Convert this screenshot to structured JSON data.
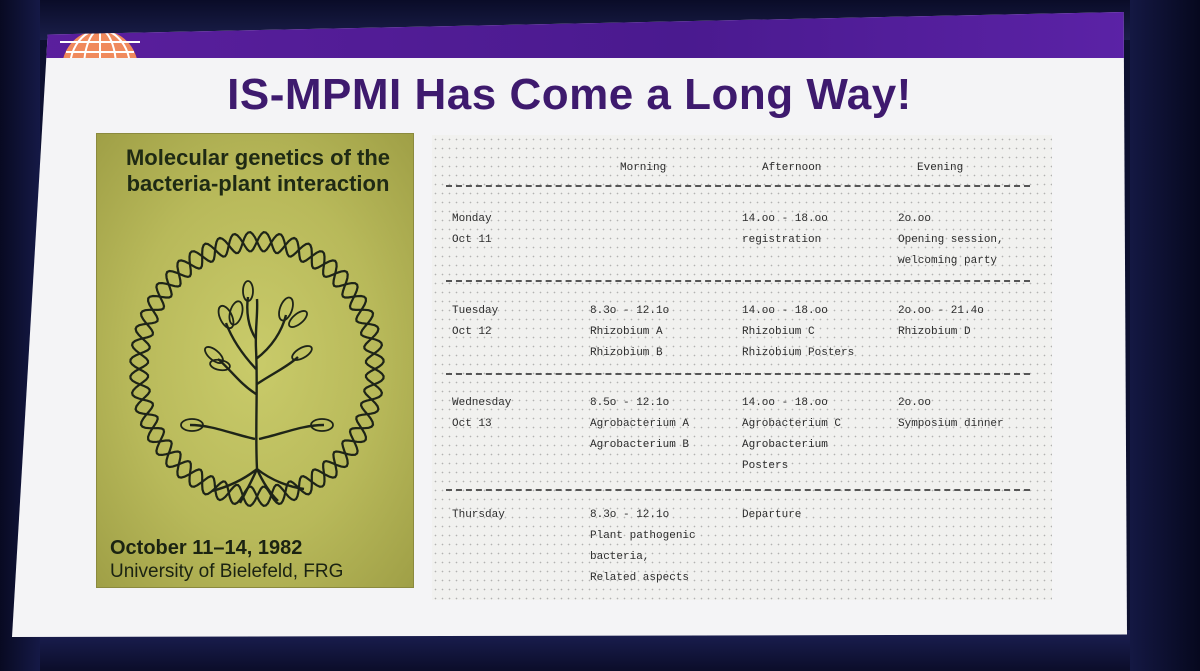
{
  "slide": {
    "title": "IS-MPMI Has Come a Long Way!"
  },
  "poster": {
    "title_line1": "Molecular genetics of the",
    "title_line2": "bacteria-plant interaction",
    "date": "October 11–14, 1982",
    "place": "University of Bielefeld, FRG"
  },
  "schedule": {
    "headers": {
      "morning": "Morning",
      "afternoon": "Afternoon",
      "evening": "Evening"
    },
    "days": [
      {
        "day": [
          "Monday",
          "Oct 11"
        ],
        "morning": [],
        "afternoon": [
          "14.oo - 18.oo",
          "registration"
        ],
        "evening": [
          "2o.oo",
          "Opening session,",
          "welcoming party"
        ]
      },
      {
        "day": [
          "Tuesday",
          "Oct 12"
        ],
        "morning": [
          "8.3o - 12.1o",
          "Rhizobium A",
          "Rhizobium B"
        ],
        "afternoon": [
          "14.oo - 18.oo",
          "Rhizobium C",
          "Rhizobium Posters"
        ],
        "evening": [
          "2o.oo - 21.4o",
          "Rhizobium D"
        ]
      },
      {
        "day": [
          "Wednesday",
          "Oct 13"
        ],
        "morning": [
          "8.5o - 12.1o",
          "Agrobacterium A",
          "Agrobacterium B"
        ],
        "afternoon": [
          "14.oo - 18.oo",
          "Agrobacterium C",
          "Agrobacterium",
          "Posters"
        ],
        "evening": [
          "2o.oo",
          "Symposium dinner"
        ]
      },
      {
        "day": [
          "Thursday"
        ],
        "morning": [
          "8.3o - 12.1o",
          "Plant pathogenic",
          "bacteria,",
          "Related aspects"
        ],
        "afternoon": [
          "Departure"
        ],
        "evening": []
      }
    ]
  },
  "colors": {
    "banner": "#4a1a8f",
    "title": "#3e1a6e",
    "poster_bg": "#c9cb6a",
    "logo": "#f08a5d"
  }
}
